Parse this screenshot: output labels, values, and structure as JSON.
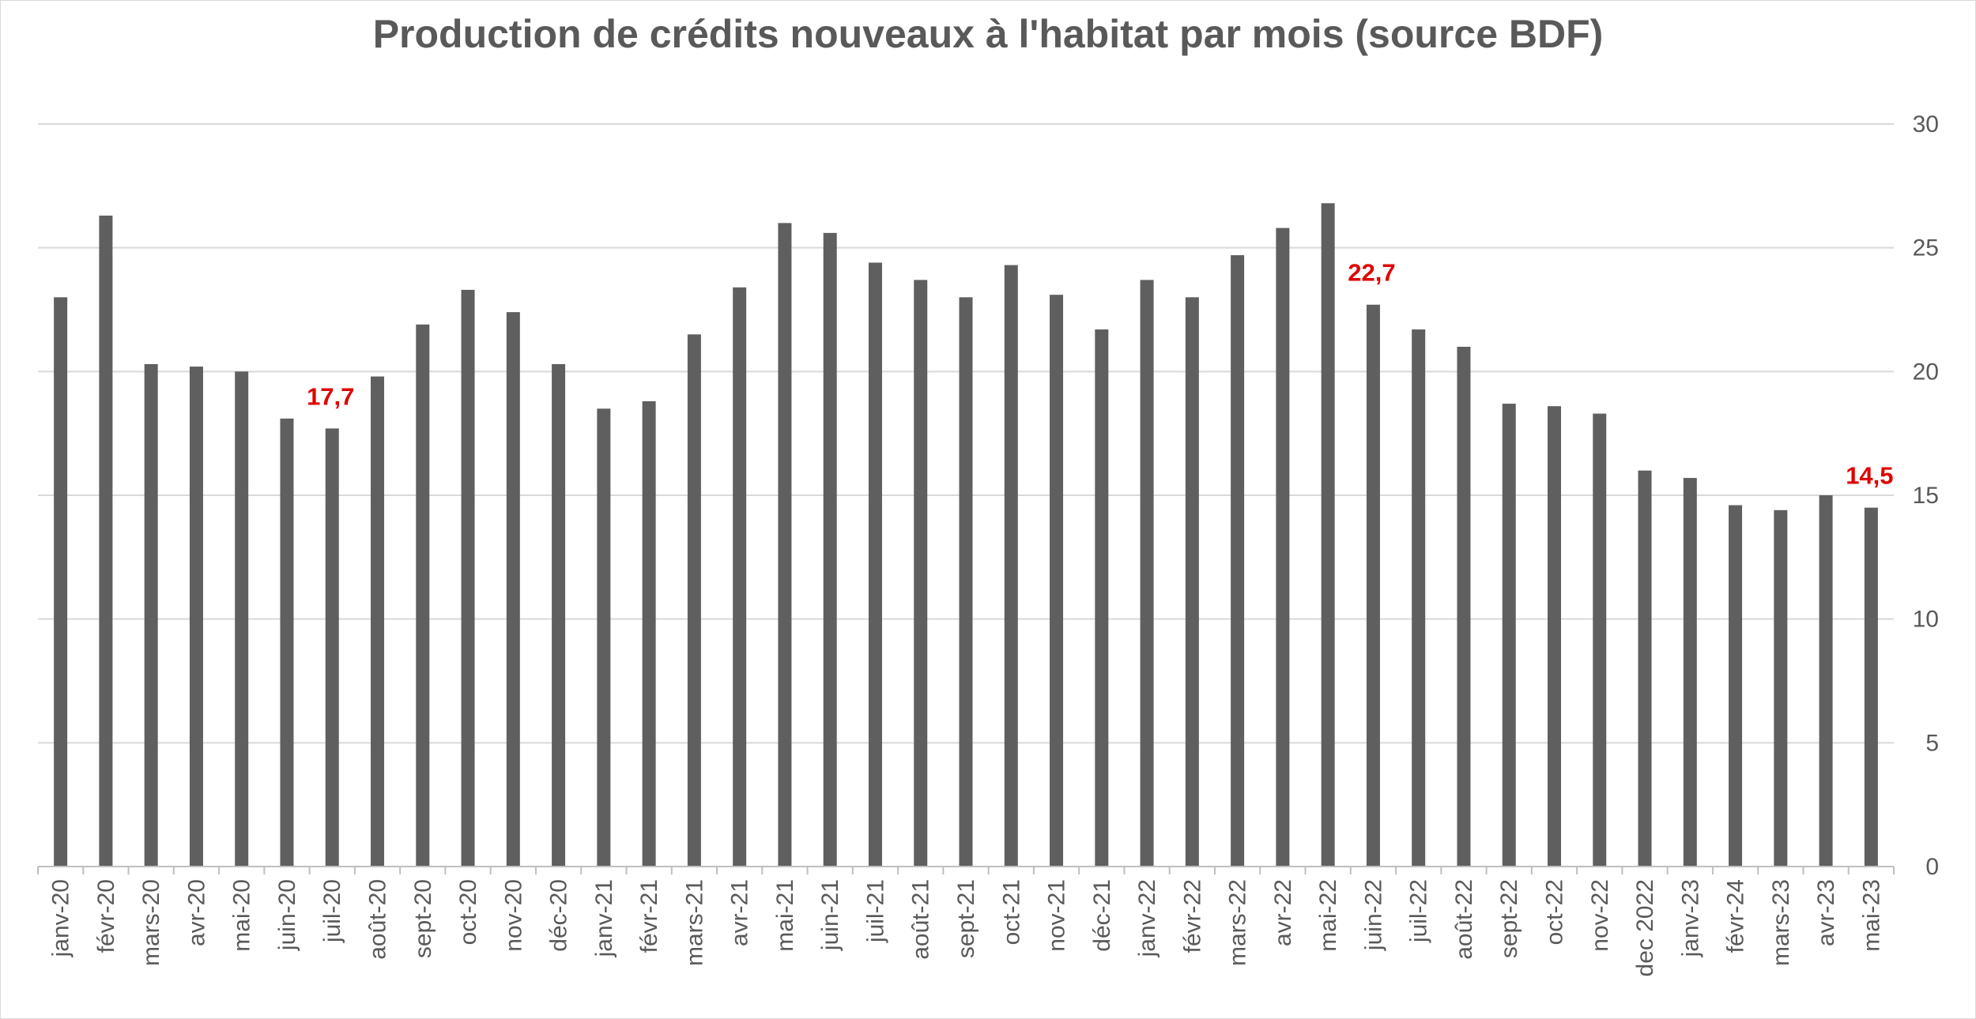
{
  "chart_data": {
    "type": "bar",
    "title": "Production de crédits nouveaux à l'habitat par mois (source BDF)",
    "xlabel": "",
    "ylabel": "",
    "ylim": [
      0,
      30
    ],
    "yticks": [
      0,
      5,
      10,
      15,
      20,
      25,
      30
    ],
    "y_axis_side": "right",
    "grid": true,
    "categories": [
      "janv-20",
      "févr-20",
      "mars-20",
      "avr-20",
      "mai-20",
      "juin-20",
      "juil-20",
      "août-20",
      "sept-20",
      "oct-20",
      "nov-20",
      "déc-20",
      "janv-21",
      "févr-21",
      "mars-21",
      "avr-21",
      "mai-21",
      "juin-21",
      "juil-21",
      "août-21",
      "sept-21",
      "oct-21",
      "nov-21",
      "déc-21",
      "janv-22",
      "févr-22",
      "mars-22",
      "avr-22",
      "mai-22",
      "juin-22",
      "juil-22",
      "août-22",
      "sept-22",
      "oct-22",
      "nov-22",
      "dec 2022",
      "janv-23",
      "févr-24",
      "mars-23",
      "avr-23",
      "mai-23"
    ],
    "values": [
      23.0,
      26.3,
      20.3,
      20.2,
      20.0,
      18.1,
      17.7,
      19.8,
      21.9,
      23.3,
      22.4,
      20.3,
      18.5,
      18.8,
      21.5,
      23.4,
      26.0,
      25.6,
      24.4,
      23.7,
      23.0,
      24.3,
      23.1,
      21.7,
      23.7,
      23.0,
      24.7,
      25.8,
      26.8,
      22.7,
      21.7,
      21.0,
      18.7,
      18.6,
      18.3,
      16.0,
      15.7,
      14.6,
      14.4,
      15.0,
      14.5
    ],
    "data_labels": [
      {
        "category": "juil-20",
        "text": "17,7"
      },
      {
        "category": "juin-22",
        "text": "22,7"
      },
      {
        "category": "mai-23",
        "text": "14,5"
      }
    ],
    "colors": {
      "bar": "#5f5f5f",
      "grid": "#d9d9d9",
      "axis": "#bfbfbf",
      "text": "#595959",
      "data_label": "#e00000"
    }
  }
}
